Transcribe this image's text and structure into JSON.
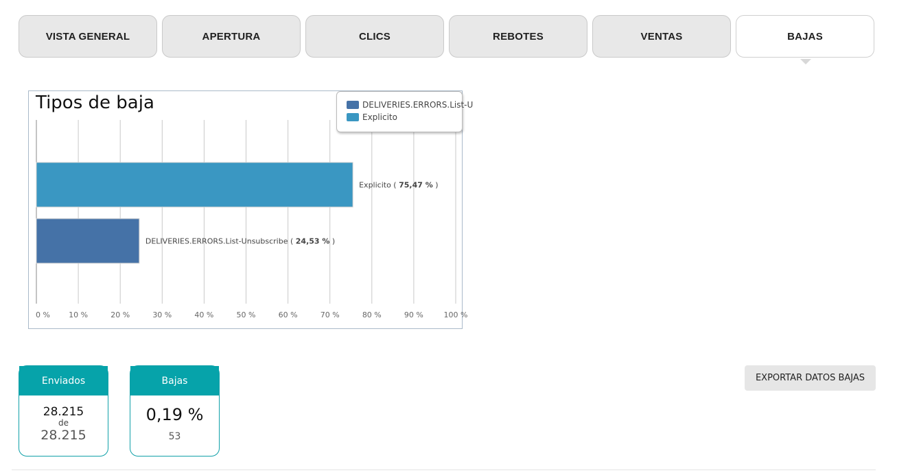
{
  "tabs": [
    {
      "label": "VISTA GENERAL",
      "active": false
    },
    {
      "label": "APERTURA",
      "active": false
    },
    {
      "label": "CLICS",
      "active": false
    },
    {
      "label": "REBOTES",
      "active": false
    },
    {
      "label": "VENTAS",
      "active": false
    },
    {
      "label": "BAJAS",
      "active": true
    }
  ],
  "chart_data": {
    "type": "bar",
    "orientation": "horizontal",
    "title": "Tipos de baja",
    "categories": [
      "Explicito",
      "DELIVERIES.ERRORS.List-Unsubscribe"
    ],
    "values": [
      75.47,
      24.53
    ],
    "data_labels": [
      {
        "name": "Explicito",
        "value": "75,47 %"
      },
      {
        "name": "DELIVERIES.ERRORS.List-Unsubscribe",
        "value": "24,53 %"
      }
    ],
    "colors": [
      "#3a97c2",
      "#4572a7"
    ],
    "xlim": [
      0,
      100
    ],
    "x_ticks": [
      "0 %",
      "10 %",
      "20 %",
      "30 %",
      "40 %",
      "50 %",
      "60 %",
      "70 %",
      "80 %",
      "90 %",
      "100 %"
    ],
    "grid": true,
    "legend": {
      "placement": "top-right",
      "entries": [
        {
          "name": "DELIVERIES.ERRORS.List-U",
          "color": "#4572a7"
        },
        {
          "name": "Explicito",
          "color": "#3a97c2"
        }
      ]
    }
  },
  "cards": {
    "enviados": {
      "title": "Enviados",
      "value": "28.215",
      "connector": "de",
      "total": "28.215"
    },
    "bajas": {
      "title": "Bajas",
      "percent": "0,19 %",
      "count": "53"
    }
  },
  "export_label": "EXPORTAR DATOS BAJAS",
  "colors": {
    "accent": "#06a3aa",
    "tab_bg": "#e8e8e8",
    "tab_active_bg": "#ffffff"
  }
}
